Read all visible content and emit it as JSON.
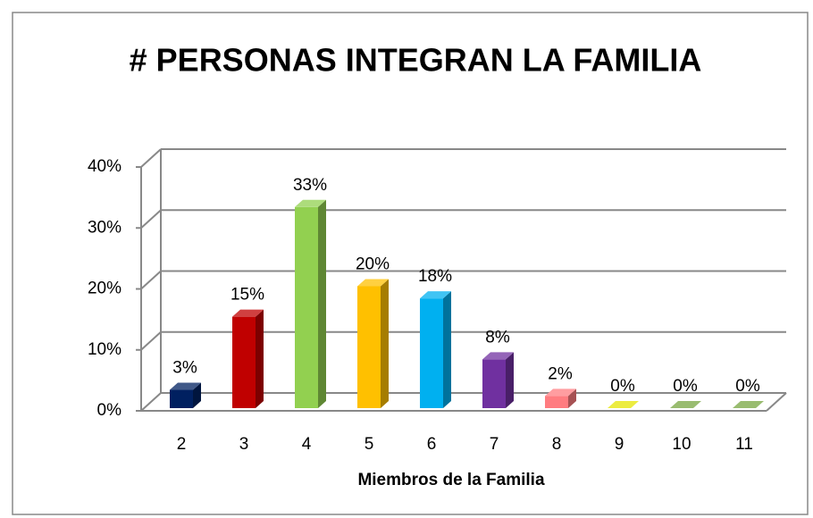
{
  "chart_data": {
    "type": "bar3d",
    "title": "# PERSONAS INTEGRAN LA FAMILIA",
    "x_label": "Miembros de la Familia",
    "categories": [
      "2",
      "3",
      "4",
      "5",
      "6",
      "7",
      "8",
      "9",
      "10",
      "11"
    ],
    "values": [
      3,
      15,
      33,
      20,
      18,
      8,
      2,
      0,
      0,
      0
    ],
    "value_labels": [
      "3%",
      "15%",
      "33%",
      "20%",
      "18%",
      "8%",
      "2%",
      "0%",
      "0%",
      "0%"
    ],
    "colors": [
      "#002060",
      "#c00000",
      "#92d050",
      "#ffc000",
      "#00b0f0",
      "#7030a0",
      "#ff7c80",
      "#e6e600",
      "#77a640",
      "#77a640"
    ],
    "ylim": [
      0,
      40
    ],
    "yticks": [
      {
        "value": 0,
        "label": "0%"
      },
      {
        "value": 10,
        "label": "10%"
      },
      {
        "value": 20,
        "label": "20%"
      },
      {
        "value": 30,
        "label": "30%"
      },
      {
        "value": 40,
        "label": "40%"
      }
    ],
    "grid": true
  }
}
